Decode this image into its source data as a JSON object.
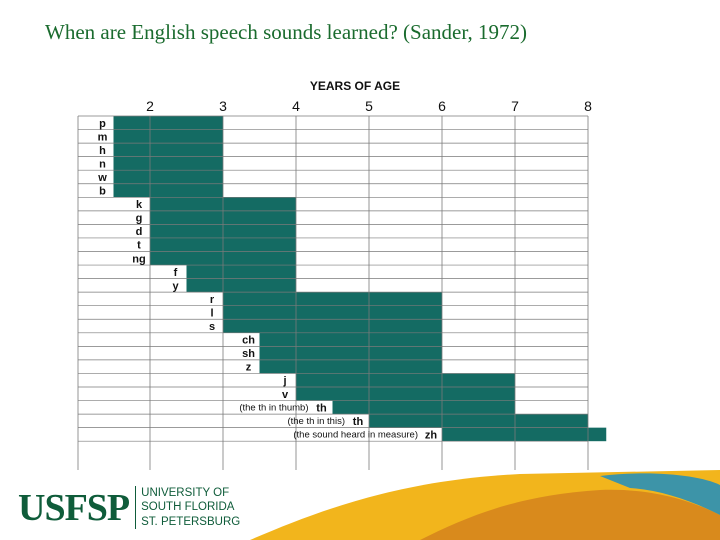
{
  "slide": {
    "title": "When are English speech sounds learned? (Sander, 1972)"
  },
  "chart_data": {
    "type": "bar",
    "orientation": "horizontal",
    "title": "YEARS OF AGE",
    "xlim": [
      1.5,
      8
    ],
    "x_ticks": [
      2,
      3,
      4,
      5,
      6,
      7,
      8
    ],
    "grid": true,
    "rows": [
      {
        "label": "p",
        "start": 1.5,
        "end": 3
      },
      {
        "label": "m",
        "start": 1.5,
        "end": 3
      },
      {
        "label": "h",
        "start": 1.5,
        "end": 3
      },
      {
        "label": "n",
        "start": 1.5,
        "end": 3
      },
      {
        "label": "w",
        "start": 1.5,
        "end": 3
      },
      {
        "label": "b",
        "start": 1.5,
        "end": 3
      },
      {
        "label": "k",
        "start": 2,
        "end": 4
      },
      {
        "label": "g",
        "start": 2,
        "end": 4
      },
      {
        "label": "d",
        "start": 2,
        "end": 4
      },
      {
        "label": "t",
        "start": 2,
        "end": 4
      },
      {
        "label": "ng",
        "start": 2,
        "end": 4
      },
      {
        "label": "f",
        "start": 2.5,
        "end": 4
      },
      {
        "label": "y",
        "start": 2.5,
        "end": 4
      },
      {
        "label": "r",
        "start": 3,
        "end": 6
      },
      {
        "label": "l",
        "start": 3,
        "end": 6
      },
      {
        "label": "s",
        "start": 3,
        "end": 6
      },
      {
        "label": "ch",
        "start": 3.5,
        "end": 6
      },
      {
        "label": "sh",
        "start": 3.5,
        "end": 6
      },
      {
        "label": "z",
        "start": 3.5,
        "end": 6
      },
      {
        "label": "j",
        "start": 4,
        "end": 7
      },
      {
        "label": "v",
        "start": 4,
        "end": 7
      },
      {
        "label": "th",
        "note": "(the th in thumb)",
        "start": 4.5,
        "end": 7
      },
      {
        "label": "th",
        "note": "(the th in this)",
        "start": 5,
        "end": 8
      },
      {
        "label": "zh",
        "note": "(the sound heard in measure)",
        "start": 6,
        "end": 8.25
      }
    ],
    "colors": {
      "bar": "#146b63",
      "grid": "#7a7a7a",
      "text": "#111111"
    }
  },
  "footer": {
    "logo_mark": "USFSP",
    "logo_lines": [
      "UNIVERSITY OF",
      "SOUTH FLORIDA",
      "ST. PETERSBURG"
    ],
    "colors": {
      "green": "#0f5c3a",
      "gold": "#f2b51c",
      "orange": "#d98a1c",
      "teal": "#3d94a8"
    }
  }
}
